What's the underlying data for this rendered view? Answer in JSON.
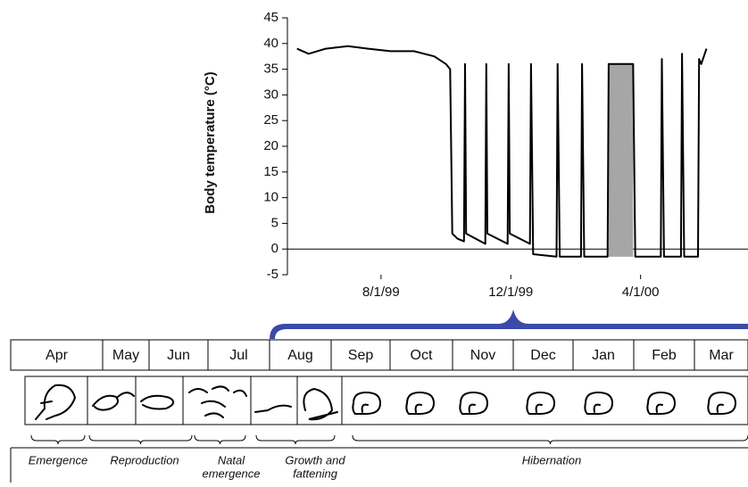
{
  "chart_data": {
    "type": "line",
    "y_label": "Body temperature (°C)",
    "xlim": [
      "5/5/99",
      "7/11/00"
    ],
    "xticks": [
      "8/1/99",
      "12/1/99",
      "4/1/00"
    ],
    "ylim": [
      -5,
      45
    ],
    "yticks": [
      -5,
      0,
      5,
      10,
      15,
      20,
      25,
      30,
      35,
      40,
      45
    ],
    "zero_line": true,
    "color": "#000000",
    "x": [
      "5/14/99",
      "5/25/99",
      "6/10/99",
      "7/1/99",
      "7/20/99",
      "8/10/99",
      "9/1/99",
      "9/20/99",
      "10/1/99",
      "10/5/99",
      "10/7/99",
      "10/12/99",
      "10/18/99",
      "10/19/99",
      "10/20/99",
      "11/7/99",
      "11/8/99",
      "11/9/99",
      "11/28/99",
      "11/29/99",
      "11/30/99",
      "12/19/99",
      "12/20/99",
      "12/22/99",
      "1/13/00",
      "1/14/00",
      "1/16/00",
      "2/5/00",
      "2/6/00",
      "2/8/00",
      "3/1/00",
      "3/2/00",
      "3/25/00",
      "3/27/00",
      "4/20/00",
      "4/21/00",
      "4/23/00",
      "5/9/00",
      "5/10/00",
      "5/12/00",
      "5/25/00",
      "5/26/00",
      "5/28/00",
      "6/2/00"
    ],
    "values": [
      39,
      38,
      39,
      39.5,
      39,
      38.5,
      38.5,
      37.5,
      36,
      35,
      3,
      2,
      1.5,
      36,
      3,
      1,
      36,
      3,
      1,
      36,
      3,
      1,
      36,
      -1,
      -1.5,
      36,
      -1.5,
      -1.5,
      36,
      -1.5,
      -1.5,
      36,
      36,
      -1.5,
      -1.5,
      37,
      -1.5,
      -1.5,
      38,
      -1.5,
      -1.5,
      37,
      36,
      39
    ],
    "shaded_region": {
      "x": [
        "3/2/00",
        "3/25/00"
      ],
      "y": [
        -1.5,
        36
      ],
      "color": "#a6a6a6"
    }
  },
  "diagram": {
    "months": [
      "Apr",
      "May",
      "Jun",
      "Jul",
      "Aug",
      "Sep",
      "Oct",
      "Nov",
      "Dec",
      "Jan",
      "Feb",
      "Mar"
    ],
    "phases": [
      [
        "Emergence"
      ],
      [
        "Reproduction"
      ],
      [
        "Natal",
        "emergence"
      ],
      [
        "Growth and",
        "fattening"
      ],
      [
        "Hibernation"
      ]
    ]
  }
}
